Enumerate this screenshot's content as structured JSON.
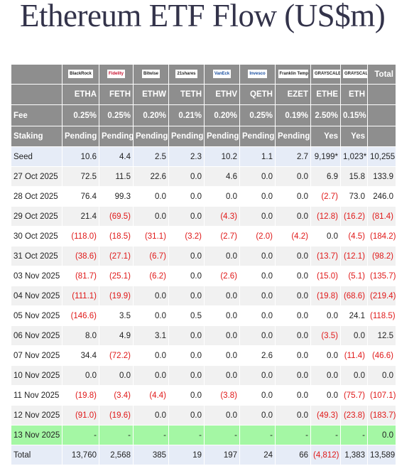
{
  "title": "Ethereum ETF Flow (US$m)",
  "table": {
    "issuers": [
      "BlackRock",
      "Fidelity",
      "Bitwise",
      "21shares",
      "VanEck",
      "Invesco",
      "Franklin Templeton",
      "GRAYSCALE",
      "GRAYSCALE"
    ],
    "total_label": "Total",
    "tickers": [
      "ETHA",
      "FETH",
      "ETHW",
      "TETH",
      "ETHV",
      "QETH",
      "EZET",
      "ETHE",
      "ETH"
    ],
    "header_rows": [
      {
        "label": "Fee",
        "cells": [
          "0.25%",
          "0.25%",
          "0.20%",
          "0.21%",
          "0.20%",
          "0.25%",
          "0.19%",
          "2.50%",
          "0.15%"
        ]
      },
      {
        "label": "Staking",
        "cells": [
          "Pending",
          "Pending",
          "Pending",
          "Pending",
          "Pending",
          "Pending",
          "Pending",
          "Yes",
          "Yes"
        ]
      }
    ],
    "rows": [
      [
        "Seed",
        "10.6",
        "4.4",
        "2.5",
        "2.3",
        "10.2",
        "1.1",
        "2.7",
        "9,199*",
        "1,023*",
        "10,255"
      ],
      [
        "27 Oct 2025",
        "72.5",
        "11.5",
        "22.6",
        "0.0",
        "4.6",
        "0.0",
        "0.0",
        "6.9",
        "15.8",
        "133.9"
      ],
      [
        "28 Oct 2025",
        "76.4",
        "99.3",
        "0.0",
        "0.0",
        "0.0",
        "0.0",
        "0.0",
        "(2.7)",
        "73.0",
        "246.0"
      ],
      [
        "29 Oct 2025",
        "21.4",
        "(69.5)",
        "0.0",
        "0.0",
        "(4.3)",
        "0.0",
        "0.0",
        "(12.8)",
        "(16.2)",
        "(81.4)"
      ],
      [
        "30 Oct 2025",
        "(118.0)",
        "(18.5)",
        "(31.1)",
        "(3.2)",
        "(2.7)",
        "(2.0)",
        "(4.2)",
        "0.0",
        "(4.5)",
        "(184.2)"
      ],
      [
        "31 Oct 2025",
        "(38.6)",
        "(27.1)",
        "(6.7)",
        "0.0",
        "0.0",
        "0.0",
        "0.0",
        "(13.7)",
        "(12.1)",
        "(98.2)"
      ],
      [
        "03 Nov 2025",
        "(81.7)",
        "(25.1)",
        "(6.2)",
        "0.0",
        "(2.6)",
        "0.0",
        "0.0",
        "(15.0)",
        "(5.1)",
        "(135.7)"
      ],
      [
        "04 Nov 2025",
        "(111.1)",
        "(19.9)",
        "0.0",
        "0.0",
        "0.0",
        "0.0",
        "0.0",
        "(19.8)",
        "(68.6)",
        "(219.4)"
      ],
      [
        "05 Nov 2025",
        "(146.6)",
        "3.5",
        "0.0",
        "0.5",
        "0.0",
        "0.0",
        "0.0",
        "0.0",
        "24.1",
        "(118.5)"
      ],
      [
        "06 Nov 2025",
        "8.0",
        "4.9",
        "3.1",
        "0.0",
        "0.0",
        "0.0",
        "0.0",
        "(3.5)",
        "0.0",
        "12.5"
      ],
      [
        "07 Nov 2025",
        "34.4",
        "(72.2)",
        "0.0",
        "0.0",
        "0.0",
        "2.6",
        "0.0",
        "0.0",
        "(11.4)",
        "(46.6)"
      ],
      [
        "10 Nov 2025",
        "0.0",
        "0.0",
        "0.0",
        "0.0",
        "0.0",
        "0.0",
        "0.0",
        "0.0",
        "0.0",
        "0.0"
      ],
      [
        "11 Nov 2025",
        "(19.8)",
        "(3.4)",
        "(4.4)",
        "0.0",
        "(3.8)",
        "0.0",
        "0.0",
        "0.0",
        "(75.7)",
        "(107.1)"
      ],
      [
        "12 Nov 2025",
        "(91.0)",
        "(19.6)",
        "0.0",
        "0.0",
        "0.0",
        "0.0",
        "0.0",
        "(49.3)",
        "(23.8)",
        "(183.7)"
      ],
      [
        "13 Nov 2025",
        "-",
        "-",
        "-",
        "-",
        "-",
        "-",
        "-",
        "-",
        "-",
        "0.0"
      ],
      [
        "Total",
        "13,760",
        "2,568",
        "385",
        "19",
        "197",
        "24",
        "66",
        "(4,812)",
        "1,383",
        "13,589"
      ]
    ]
  }
}
